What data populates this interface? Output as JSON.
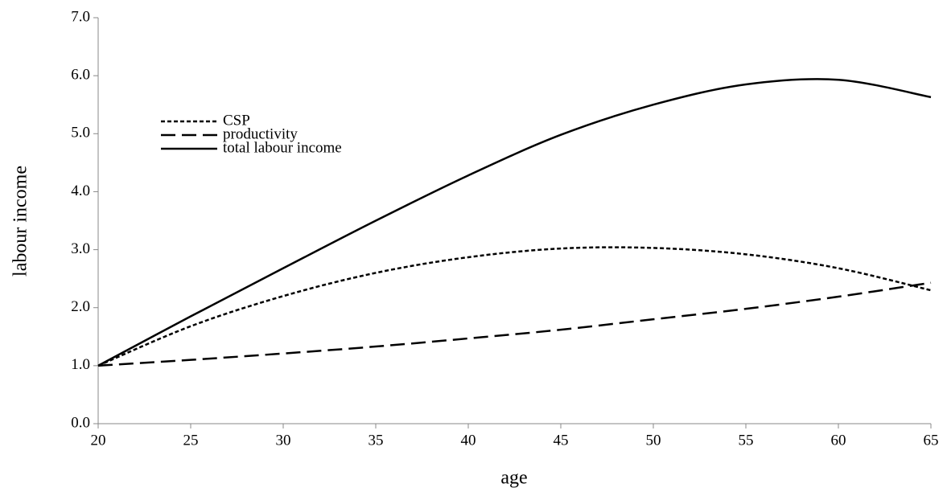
{
  "chart_data": {
    "type": "line",
    "x_label": "age",
    "y_label": "labour income",
    "x": [
      20,
      25,
      30,
      35,
      40,
      45,
      50,
      55,
      60,
      65
    ],
    "series": [
      {
        "name": "CSP",
        "color": "#000000",
        "dash": "dotted",
        "values": [
          1.0,
          1.68,
          2.2,
          2.6,
          2.87,
          3.02,
          3.03,
          2.92,
          2.68,
          2.3
        ]
      },
      {
        "name": "productivity",
        "color": "#000000",
        "dash": "dashed",
        "values": [
          1.0,
          1.1,
          1.21,
          1.33,
          1.47,
          1.62,
          1.8,
          1.98,
          2.19,
          2.43
        ]
      },
      {
        "name": "total labour income",
        "color": "#000000",
        "dash": "solid",
        "values": [
          1.0,
          1.85,
          2.68,
          3.5,
          4.28,
          4.98,
          5.5,
          5.85,
          5.93,
          5.63
        ]
      }
    ],
    "xlim": [
      20,
      65
    ],
    "xticks": [
      20,
      25,
      30,
      35,
      40,
      45,
      50,
      55,
      60,
      65
    ],
    "ylim": [
      0,
      7
    ],
    "yticks": [
      {
        "value": 0,
        "label": "0.0"
      },
      {
        "value": 1,
        "label": "1.0"
      },
      {
        "value": 2,
        "label": "2.0"
      },
      {
        "value": 3,
        "label": "3.0"
      },
      {
        "value": 4,
        "label": "4.0"
      },
      {
        "value": 5,
        "label": "5.0"
      },
      {
        "value": 6,
        "label": "6.0"
      },
      {
        "value": 7,
        "label": "7.0"
      }
    ],
    "grid": false,
    "legend": "upper left"
  }
}
